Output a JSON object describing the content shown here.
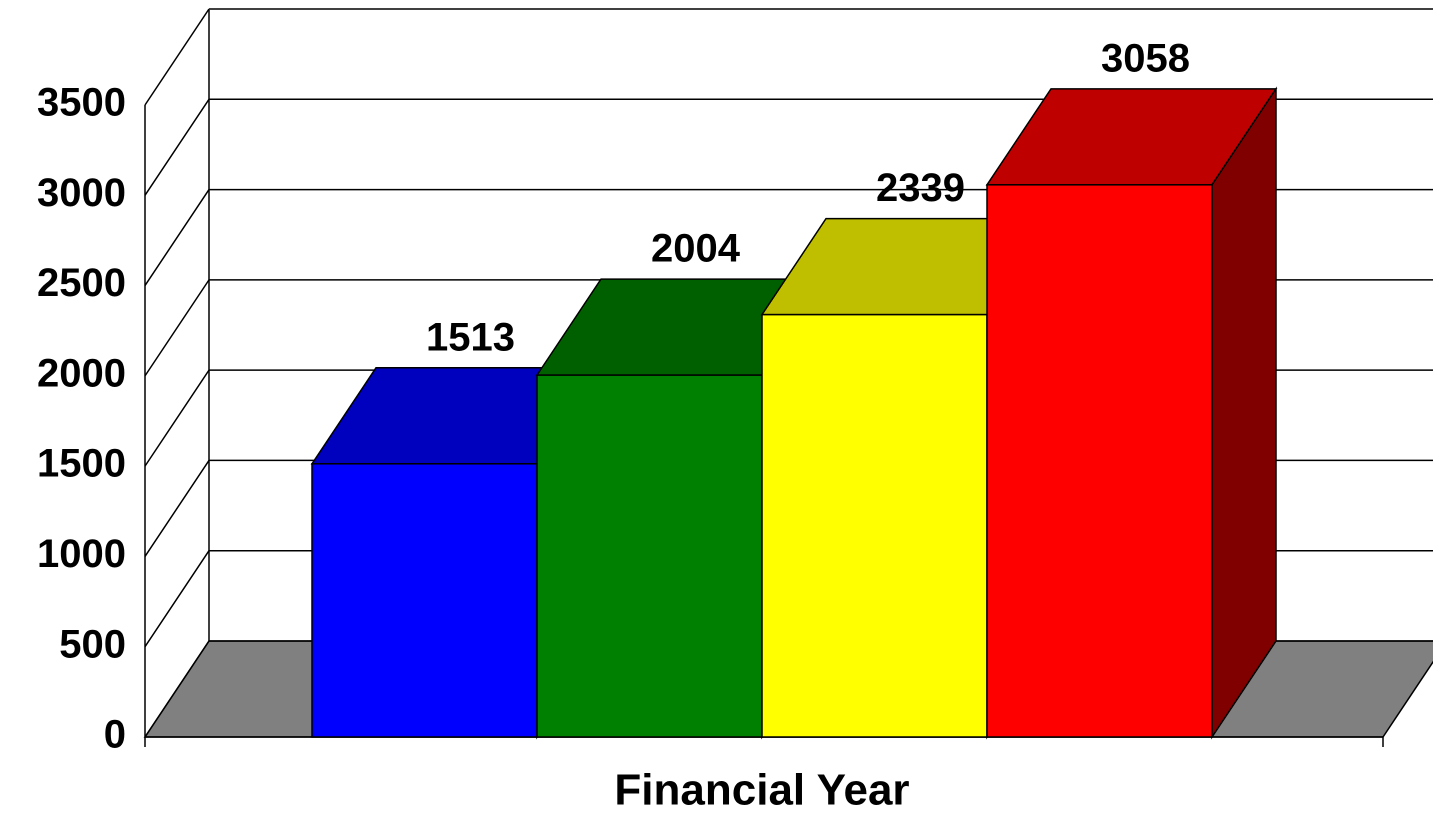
{
  "chart_data": {
    "type": "bar3d",
    "x_label": "Financial Year",
    "categories": [
      null,
      null,
      null,
      null
    ],
    "values": [
      1513,
      2004,
      2339,
      3058
    ],
    "colors": [
      "#0000ff",
      "#008000",
      "#ffff00",
      "#ff0000"
    ],
    "ylim": [
      0,
      3500
    ],
    "yticks": [
      0,
      500,
      1000,
      1500,
      2000,
      2500,
      3000,
      3500
    ],
    "grid": true
  }
}
